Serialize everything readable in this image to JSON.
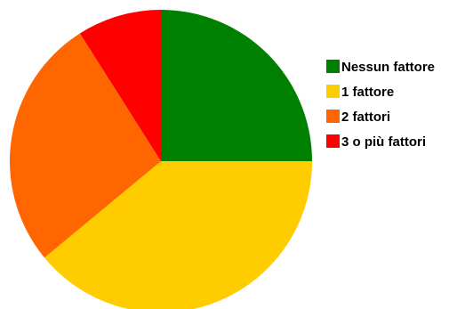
{
  "chart_data": {
    "type": "pie",
    "title": "",
    "slices": [
      {
        "label": "Nessun fattore",
        "value": 25.0,
        "color": "#008000"
      },
      {
        "label": "1 fattore",
        "value": 39.0,
        "color": "#FFCC00"
      },
      {
        "label": "2 fattori",
        "value": 27.0,
        "color": "#FF6600"
      },
      {
        "label": "3 o più fattori",
        "value": 9.0,
        "color": "#FF0000"
      }
    ],
    "legend_placement": "right"
  }
}
